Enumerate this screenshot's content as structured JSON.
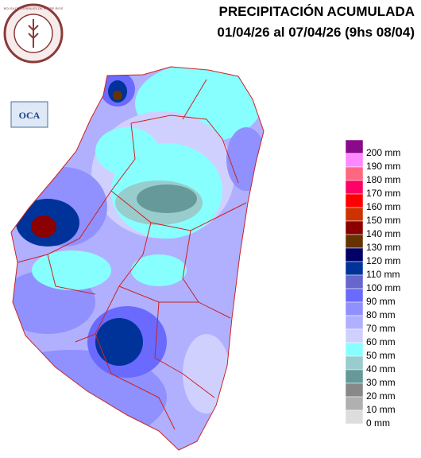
{
  "header": {
    "title": "PRECIPITACIÓN ACUMULADA",
    "subtitle": "01/04/26 al 07/04/26 (9hs 08/04)"
  },
  "logos": {
    "institution": "BOLSA DE CEREALES DE ENTRE RIOS",
    "oca": "OCA"
  },
  "legend": {
    "items": [
      {
        "label": "200 mm",
        "color": "#8b0a8b"
      },
      {
        "label": "190 mm",
        "color": "#ff88ff"
      },
      {
        "label": "180 mm",
        "color": "#ff6680"
      },
      {
        "label": "170 mm",
        "color": "#ff0066"
      },
      {
        "label": "160 mm",
        "color": "#ff0000"
      },
      {
        "label": "150 mm",
        "color": "#cc3300"
      },
      {
        "label": "140 mm",
        "color": "#8b0000"
      },
      {
        "label": "130 mm",
        "color": "#663300"
      },
      {
        "label": "120 mm",
        "color": "#000066"
      },
      {
        "label": "110 mm",
        "color": "#003399"
      },
      {
        "label": "100 mm",
        "color": "#6666cc"
      },
      {
        "label": "90 mm",
        "color": "#6a6aff"
      },
      {
        "label": "80 mm",
        "color": "#9090ff"
      },
      {
        "label": "70 mm",
        "color": "#b0b0ff"
      },
      {
        "label": "60 mm",
        "color": "#d0d0ff"
      },
      {
        "label": "50 mm",
        "color": "#88ffff"
      },
      {
        "label": "40 mm",
        "color": "#99cccc"
      },
      {
        "label": "30 mm",
        "color": "#669999"
      },
      {
        "label": "20 mm",
        "color": "#888888"
      },
      {
        "label": "10 mm",
        "color": "#b0b0b0"
      },
      {
        "label": "0 mm",
        "color": "#dddddd"
      }
    ]
  }
}
